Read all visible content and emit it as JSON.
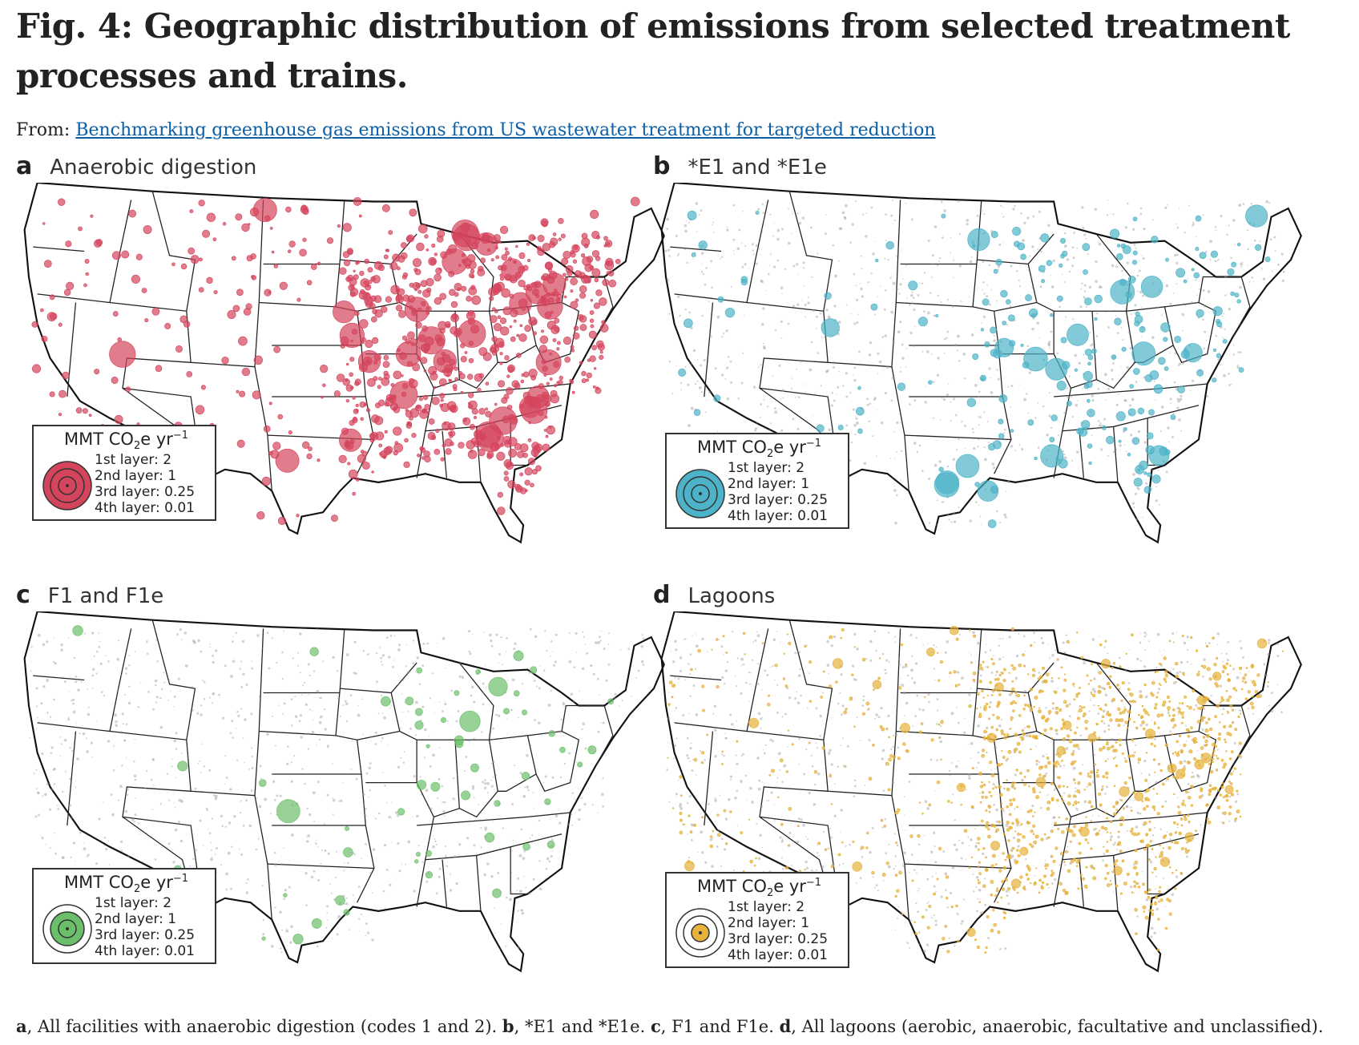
{
  "figure": {
    "title": "Fig. 4: Geographic distribution of emissions from selected treatment processes and trains.",
    "from_label": "From:",
    "from_link": "Benchmarking greenhouse gas emissions from US wastewater treatment for targeted reduction"
  },
  "legend": {
    "title_pre": "MMT CO",
    "title_sub": "2",
    "title_post": "e yr",
    "title_sup": "−1",
    "layers": [
      "1st layer: 2",
      "2nd layer: 1",
      "3rd layer: 0.25",
      "4th layer: 0.01"
    ]
  },
  "panels": [
    {
      "letter": "a",
      "name": "Anaerobic digestion",
      "color": "#d4445c"
    },
    {
      "letter": "b",
      "name": "*E1 and *E1e",
      "color": "#4db3c8"
    },
    {
      "letter": "c",
      "name": "F1 and F1e",
      "color": "#6cbf6a"
    },
    {
      "letter": "d",
      "name": "Lagoons",
      "color": "#e6b23c"
    }
  ],
  "caption": {
    "a_letter": "a",
    "a_text": ", All facilities with anaerobic digestion (codes 1 and 2). ",
    "b_letter": "b",
    "b_text": ", *E1 and *E1e. ",
    "c_letter": "c",
    "c_text": ", F1 and F1e. ",
    "d_letter": "d",
    "d_text": ", All lagoons (aerobic, anaerobic, facultative and unclassified)."
  }
}
